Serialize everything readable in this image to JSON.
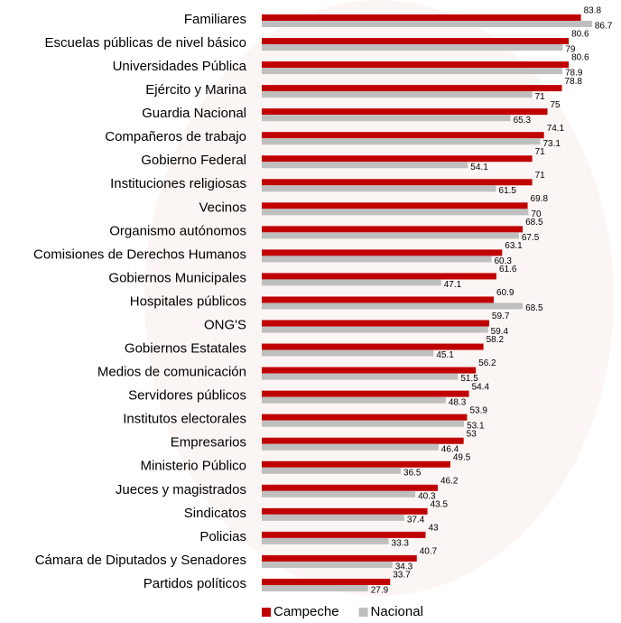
{
  "chart_data": {
    "type": "bar",
    "orientation": "horizontal",
    "categories": [
      "Familiares",
      "Escuelas públicas de nivel básico",
      "Universidades Pública",
      "Ejército y Marina",
      "Guardia Nacional",
      "Compañeros de trabajo",
      "Gobierno Federal",
      "Instituciones religiosas",
      "Vecinos",
      "Organismo autónomos",
      "Comisiones de Derechos Humanos",
      "Gobiernos Municipales",
      "Hospitales públicos",
      "ONG'S",
      "Gobiernos Estatales",
      "Medios de comunicación",
      "Servidores públicos",
      "Institutos electorales",
      "Empresarios",
      "Ministerio Público",
      "Jueces y magistrados",
      "Sindicatos",
      "Policias",
      "Cámara de Diputados y Senadores",
      "Partidos políticos"
    ],
    "series": [
      {
        "name": "Campeche",
        "color": "#c00000",
        "values": [
          83.8,
          80.6,
          80.6,
          78.8,
          75,
          74.1,
          71,
          71,
          69.8,
          68.5,
          63.1,
          61.6,
          60.9,
          59.7,
          58.2,
          56.2,
          54.4,
          53.9,
          53,
          49.5,
          46.2,
          43.5,
          43,
          40.7,
          33.7
        ]
      },
      {
        "name": "Nacional",
        "color": "#bfbfbf",
        "values": [
          86.7,
          79,
          78.9,
          71,
          65.3,
          73.1,
          54.1,
          61.5,
          70,
          67.5,
          60.3,
          47.1,
          68.5,
          59.4,
          45.1,
          51.5,
          48.3,
          53.1,
          46.4,
          36.5,
          40.3,
          37.4,
          33.3,
          34.3,
          27.9
        ]
      }
    ],
    "legend": "bottom"
  }
}
